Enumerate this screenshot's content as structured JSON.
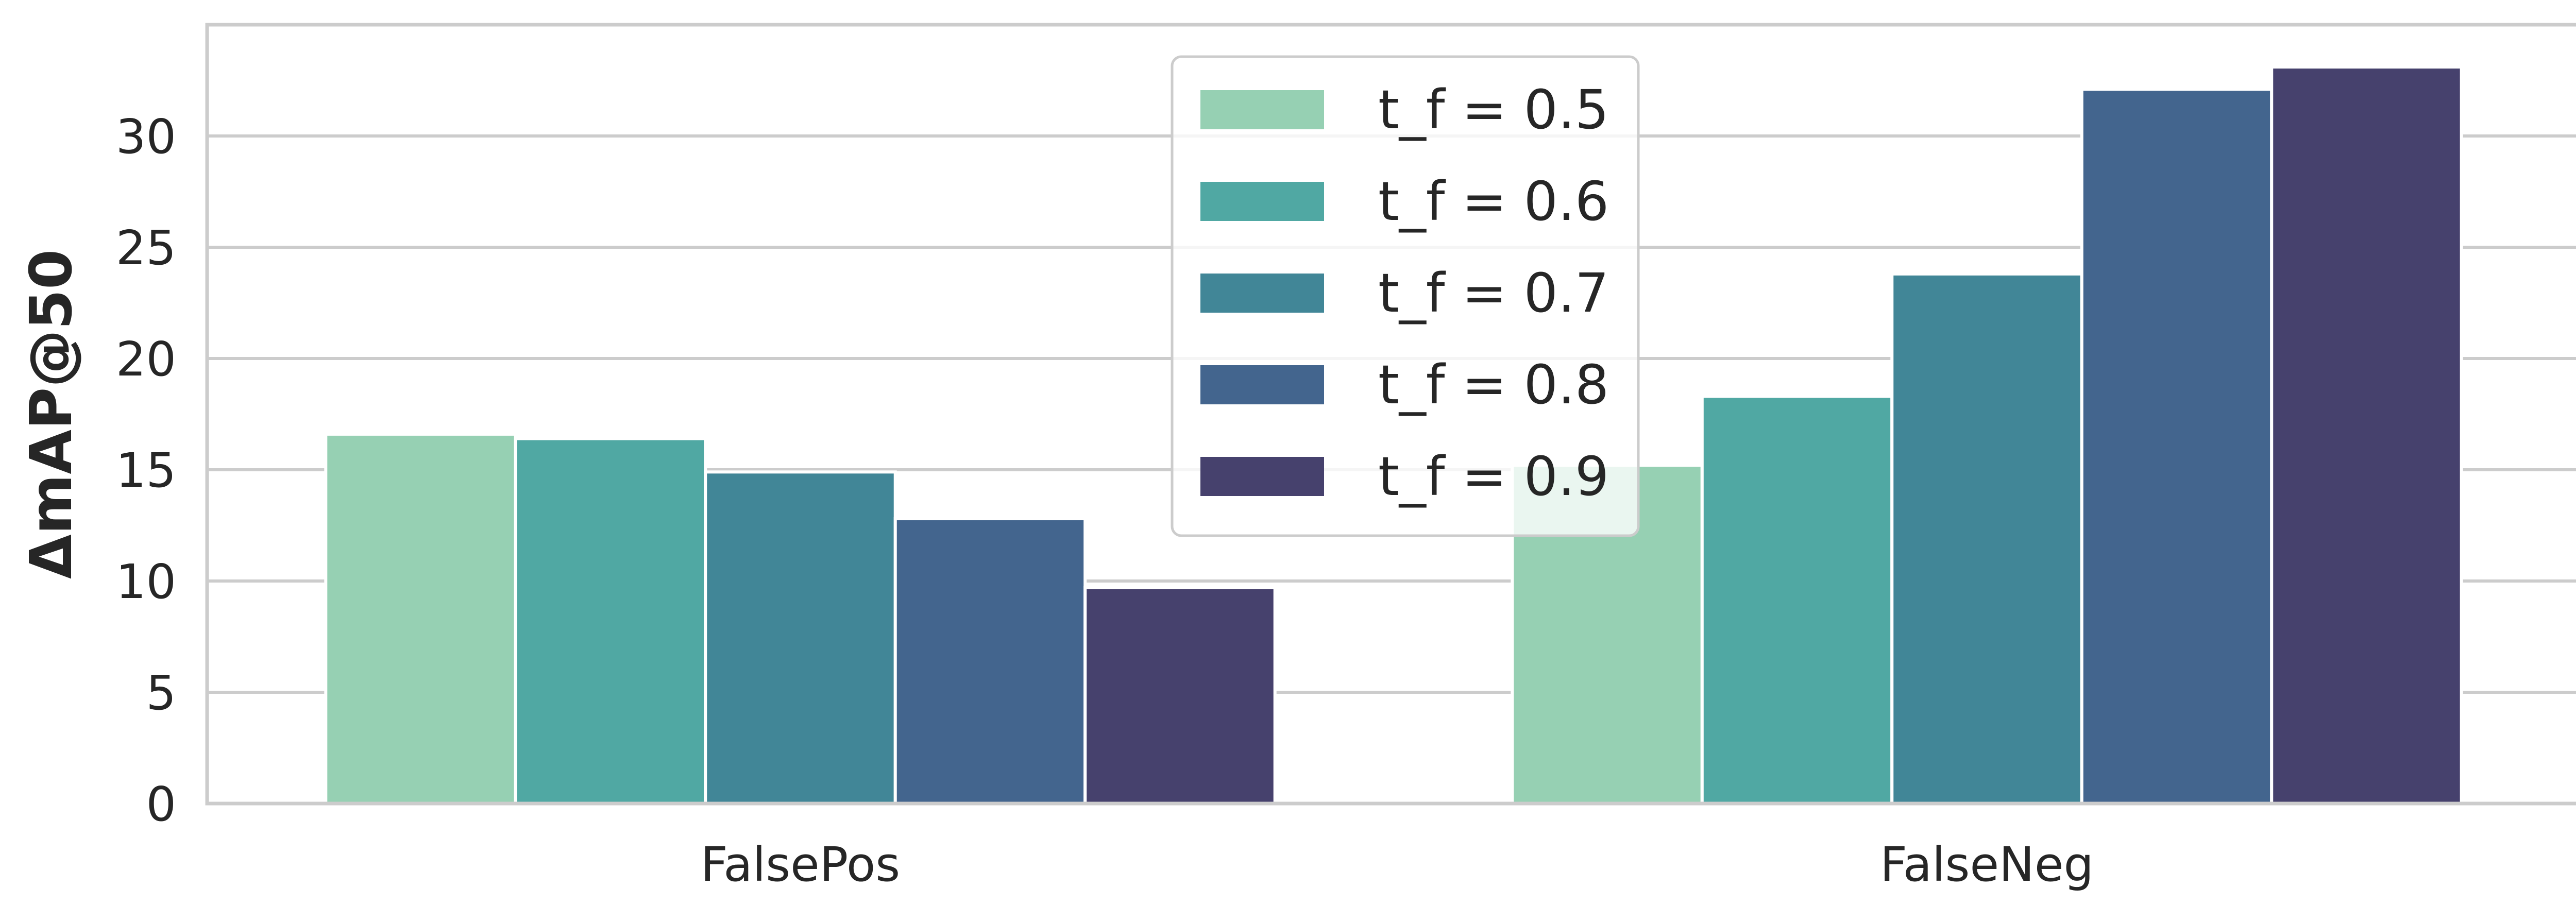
{
  "chart_data": {
    "type": "bar",
    "title": "",
    "xlabel": "",
    "ylabel": "ΔmAP@50",
    "categories": [
      "FalsePos",
      "FalseNeg"
    ],
    "series": [
      {
        "name": "t_f = 0.5",
        "color": "#96d0b3",
        "values": [
          16.6,
          15.2
        ]
      },
      {
        "name": "t_f = 0.6",
        "color": "#50a8a3",
        "values": [
          16.4,
          18.3
        ]
      },
      {
        "name": "t_f = 0.7",
        "color": "#418697",
        "values": [
          14.9,
          23.8
        ]
      },
      {
        "name": "t_f = 0.8",
        "color": "#43658e",
        "values": [
          12.8,
          32.1
        ]
      },
      {
        "name": "t_f = 0.9",
        "color": "#46416d",
        "values": [
          9.7,
          33.1
        ]
      }
    ],
    "ylim": [
      0,
      35
    ],
    "yticks": [
      0,
      5,
      10,
      15,
      20,
      25,
      30
    ],
    "grid": true,
    "legend_position": "top-center"
  }
}
